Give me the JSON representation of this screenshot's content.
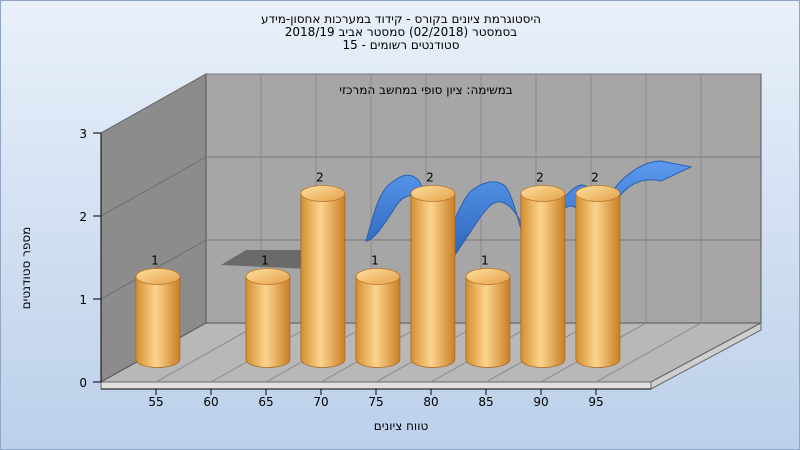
{
  "chart_data": {
    "type": "bar",
    "title_lines": [
      "היסטוגרמת ציונים בקורס - קידוד במערכות אחסון-מידע",
      "בסמסטר  (02/2018)  סמסטר אביב 2018/19",
      "סטודנטים רשומים - 15"
    ],
    "annotation": "במשימה: ציון סופי במחשב המרכזי",
    "xlabel": "טווח ציונים",
    "ylabel": "מספר סטודנטים",
    "x_ticks": [
      "55",
      "60",
      "65",
      "70",
      "75",
      "80",
      "85",
      "90",
      "95"
    ],
    "y_ticks": [
      "0",
      "1",
      "2",
      "3"
    ],
    "ylim": [
      0,
      3
    ],
    "bars": [
      {
        "x": 52.5,
        "value": 1
      },
      {
        "x": 62.5,
        "value": 1
      },
      {
        "x": 67.5,
        "value": 2
      },
      {
        "x": 72.5,
        "value": 1
      },
      {
        "x": 77.5,
        "value": 2
      },
      {
        "x": 82.5,
        "value": 1
      },
      {
        "x": 87.5,
        "value": 2
      },
      {
        "x": 92.5,
        "value": 2
      }
    ],
    "grid": true,
    "colors": {
      "bar": "#e8a84a",
      "ribbon": "#3f7fd4",
      "wall": "#a3a3a3"
    }
  }
}
